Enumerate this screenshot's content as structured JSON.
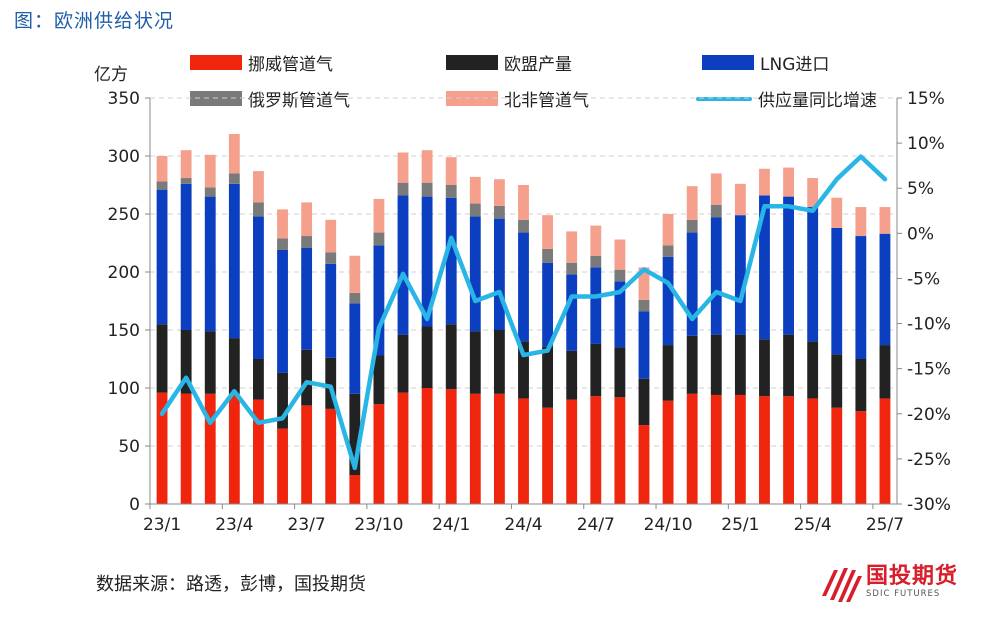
{
  "figure_title": "图：欧洲供给状况",
  "source": "数据来源：路透，彭博，国投期货",
  "logo": {
    "name": "国投期货",
    "sub": "SDIC FUTURES"
  },
  "colors": {
    "norway": "#f0250d",
    "eu": "#222222",
    "lng": "#0b3fc0",
    "russia": "#7a7a7a",
    "north_africa": "#f5a08c",
    "growth_line": "#29b6e6"
  },
  "chart_data": {
    "type": "bar",
    "stacked": true,
    "unit_left": "亿方",
    "categories": [
      "23/1",
      "23/2",
      "23/3",
      "23/4",
      "23/5",
      "23/6",
      "23/7",
      "23/8",
      "23/9",
      "23/10",
      "23/11",
      "23/12",
      "24/1",
      "24/2",
      "24/3",
      "24/4",
      "24/5",
      "24/6",
      "24/7",
      "24/8",
      "24/9",
      "24/10",
      "24/11",
      "24/12",
      "25/1",
      "25/2",
      "25/3",
      "25/4",
      "25/5",
      "25/6",
      "25/7"
    ],
    "x_tick_labels": [
      "23/1",
      "23/4",
      "23/7",
      "23/10",
      "24/1",
      "24/4",
      "24/7",
      "24/10",
      "25/1",
      "25/4",
      "25/7"
    ],
    "x_tick_index": [
      0,
      3,
      6,
      9,
      12,
      15,
      18,
      21,
      24,
      27,
      30
    ],
    "ylim": [
      0,
      350
    ],
    "y_ticks": [
      0,
      50,
      100,
      150,
      200,
      250,
      300,
      350
    ],
    "y2lim": [
      -30,
      15
    ],
    "y2_ticks": [
      "15%",
      "10%",
      "5%",
      "0%",
      "-5%",
      "-10%",
      "-15%",
      "-20%",
      "-25%",
      "-30%"
    ],
    "y2_tick_values": [
      15,
      10,
      5,
      0,
      -5,
      -10,
      -15,
      -20,
      -25,
      -30
    ],
    "grid": "horizontal dashed",
    "legend_position": "top",
    "series": [
      {
        "name": "挪威管道气",
        "color_key": "norway",
        "values": [
          96,
          95,
          95,
          95,
          90,
          65,
          85,
          82,
          25,
          86,
          96,
          100,
          99,
          95,
          95,
          91,
          83,
          90,
          93,
          92,
          68,
          89,
          95,
          94,
          94,
          93,
          93,
          91,
          83,
          80,
          91
        ]
      },
      {
        "name": "欧盟产量",
        "color_key": "eu",
        "values": [
          59,
          55,
          54,
          48,
          35,
          48,
          48,
          44,
          70,
          42,
          50,
          53,
          56,
          54,
          55,
          49,
          53,
          42,
          45,
          43,
          40,
          48,
          50,
          52,
          52,
          49,
          53,
          49,
          46,
          45,
          46
        ]
      },
      {
        "name": "LNG进口",
        "color_key": "lng",
        "values": [
          116,
          126,
          116,
          133,
          123,
          106,
          88,
          81,
          78,
          95,
          120,
          112,
          109,
          99,
          96,
          94,
          72,
          66,
          66,
          57,
          58,
          76,
          89,
          101,
          103,
          124,
          119,
          116,
          109,
          106,
          96
        ]
      },
      {
        "name": "俄罗斯管道气",
        "color_key": "russia",
        "values": [
          7,
          5,
          8,
          9,
          12,
          10,
          10,
          10,
          9,
          11,
          11,
          12,
          11,
          11,
          11,
          11,
          12,
          10,
          10,
          10,
          10,
          10,
          11,
          11,
          0,
          0,
          0,
          0,
          0,
          0,
          0
        ]
      },
      {
        "name": "北非管道气",
        "color_key": "north_africa",
        "values": [
          22,
          24,
          28,
          34,
          27,
          25,
          29,
          28,
          32,
          29,
          26,
          28,
          24,
          23,
          23,
          30,
          29,
          27,
          26,
          26,
          28,
          27,
          29,
          27,
          27,
          23,
          25,
          25,
          26,
          25,
          23
        ]
      }
    ],
    "line_series": {
      "name": "供应量同比增速",
      "axis": "right",
      "color_key": "growth_line",
      "values": [
        -20,
        -16,
        -21,
        -17.5,
        -21,
        -20.5,
        -16.5,
        -17,
        -26,
        -10.5,
        -4.5,
        -9.5,
        -0.5,
        -7.5,
        -6.5,
        -13.5,
        -13,
        -7,
        -7,
        -6.5,
        -4,
        -5.5,
        -9.5,
        -6.5,
        -7.5,
        3,
        3,
        2.5,
        6,
        8.5,
        6
      ]
    }
  }
}
